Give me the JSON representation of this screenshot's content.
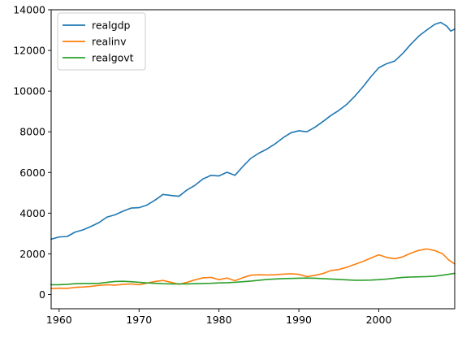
{
  "chart_data": {
    "type": "line",
    "title": "",
    "xlabel": "",
    "ylabel": "",
    "xlim": [
      1959.0,
      2009.5
    ],
    "ylim": [
      -700,
      14000
    ],
    "grid": false,
    "legend_position": "upper left",
    "x_ticks": [
      1960,
      1970,
      1980,
      1990,
      2000
    ],
    "x_tick_labels": [
      "1960",
      "1970",
      "1980",
      "1990",
      "2000"
    ],
    "y_ticks": [
      0,
      2000,
      4000,
      6000,
      8000,
      10000,
      12000,
      14000
    ],
    "y_tick_labels": [
      "0",
      "2000",
      "4000",
      "6000",
      "8000",
      "10000",
      "12000",
      "14000"
    ],
    "series": [
      {
        "name": "realgdp",
        "color": "#1f77b4",
        "x": [
          1959.0,
          1960.0,
          1961.0,
          1962.0,
          1963.0,
          1964.0,
          1965.0,
          1966.0,
          1967.0,
          1968.0,
          1969.0,
          1970.0,
          1971.0,
          1972.0,
          1973.0,
          1974.0,
          1975.0,
          1976.0,
          1977.0,
          1978.0,
          1979.0,
          1980.0,
          1981.0,
          1982.0,
          1983.0,
          1984.0,
          1985.0,
          1986.0,
          1987.0,
          1988.0,
          1989.0,
          1990.0,
          1991.0,
          1992.0,
          1993.0,
          1994.0,
          1995.0,
          1996.0,
          1997.0,
          1998.0,
          1999.0,
          2000.0,
          2001.0,
          2002.0,
          2003.0,
          2004.0,
          2005.0,
          2006.0,
          2007.0,
          2007.75,
          2008.5,
          2009.0,
          2009.5
        ],
        "y": [
          2720,
          2830,
          2850,
          3070,
          3180,
          3350,
          3540,
          3810,
          3920,
          4100,
          4250,
          4270,
          4400,
          4640,
          4920,
          4870,
          4830,
          5140,
          5370,
          5680,
          5860,
          5830,
          6010,
          5860,
          6300,
          6700,
          6950,
          7150,
          7400,
          7700,
          7950,
          8050,
          8000,
          8220,
          8500,
          8800,
          9050,
          9350,
          9750,
          10200,
          10700,
          11150,
          11350,
          11480,
          11850,
          12300,
          12700,
          13000,
          13280,
          13380,
          13200,
          12950,
          13050
        ]
      },
      {
        "name": "realinv",
        "color": "#ff7f0e",
        "x": [
          1959.0,
          1960.0,
          1961.0,
          1962.0,
          1963.0,
          1964.0,
          1965.0,
          1966.0,
          1967.0,
          1968.0,
          1969.0,
          1970.0,
          1971.0,
          1972.0,
          1973.0,
          1974.0,
          1975.0,
          1976.0,
          1977.0,
          1978.0,
          1979.0,
          1980.0,
          1981.0,
          1982.0,
          1983.0,
          1984.0,
          1985.0,
          1986.0,
          1987.0,
          1988.0,
          1989.0,
          1990.0,
          1991.0,
          1992.0,
          1993.0,
          1994.0,
          1995.0,
          1996.0,
          1997.0,
          1998.0,
          1999.0,
          2000.0,
          2001.0,
          2002.0,
          2003.0,
          2004.0,
          2005.0,
          2006.0,
          2007.0,
          2008.0,
          2008.75,
          2009.5
        ],
        "y": [
          290,
          310,
          300,
          350,
          370,
          400,
          450,
          480,
          460,
          500,
          520,
          480,
          560,
          640,
          690,
          600,
          500,
          600,
          720,
          820,
          840,
          730,
          810,
          680,
          830,
          950,
          970,
          960,
          970,
          1000,
          1020,
          990,
          880,
          940,
          1030,
          1180,
          1230,
          1340,
          1480,
          1620,
          1790,
          1950,
          1820,
          1760,
          1850,
          2030,
          2170,
          2240,
          2160,
          2000,
          1700,
          1500
        ]
      },
      {
        "name": "realgovt",
        "color": "#2ca02c",
        "x": [
          1959.0,
          1960.0,
          1961.0,
          1962.0,
          1963.0,
          1964.0,
          1965.0,
          1966.0,
          1967.0,
          1968.0,
          1969.0,
          1970.0,
          1971.0,
          1972.0,
          1973.0,
          1974.0,
          1975.0,
          1976.0,
          1977.0,
          1978.0,
          1979.0,
          1980.0,
          1981.0,
          1982.0,
          1983.0,
          1984.0,
          1985.0,
          1986.0,
          1987.0,
          1988.0,
          1989.0,
          1990.0,
          1991.0,
          1992.0,
          1993.0,
          1994.0,
          1995.0,
          1996.0,
          1997.0,
          1998.0,
          1999.0,
          2000.0,
          2001.0,
          2002.0,
          2003.0,
          2004.0,
          2005.0,
          2006.0,
          2007.0,
          2008.0,
          2009.5
        ],
        "y": [
          480,
          480,
          500,
          530,
          540,
          540,
          550,
          600,
          640,
          650,
          630,
          600,
          570,
          550,
          530,
          520,
          520,
          520,
          530,
          540,
          550,
          570,
          580,
          600,
          630,
          660,
          700,
          740,
          760,
          780,
          790,
          800,
          810,
          800,
          780,
          760,
          740,
          720,
          700,
          700,
          710,
          730,
          760,
          800,
          840,
          860,
          870,
          880,
          900,
          950,
          1040
        ]
      }
    ]
  }
}
